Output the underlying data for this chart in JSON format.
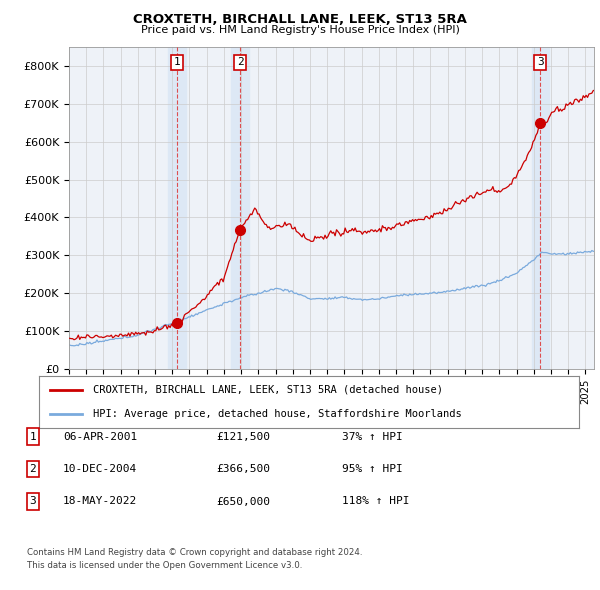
{
  "title1": "CROXTETH, BIRCHALL LANE, LEEK, ST13 5RA",
  "title2": "Price paid vs. HM Land Registry's House Price Index (HPI)",
  "ylim": [
    0,
    850000
  ],
  "yticks": [
    0,
    100000,
    200000,
    300000,
    400000,
    500000,
    600000,
    700000,
    800000
  ],
  "ytick_labels": [
    "£0",
    "£100K",
    "£200K",
    "£300K",
    "£400K",
    "£500K",
    "£600K",
    "£700K",
    "£800K"
  ],
  "sale_prices": [
    121500,
    366500,
    650000
  ],
  "sale_years": [
    2001.27,
    2004.94,
    2022.38
  ],
  "sale_labels": [
    "1",
    "2",
    "3"
  ],
  "red_line_color": "#cc0000",
  "blue_line_color": "#7aaadd",
  "legend_label_red": "CROXTETH, BIRCHALL LANE, LEEK, ST13 5RA (detached house)",
  "legend_label_blue": "HPI: Average price, detached house, Staffordshire Moorlands",
  "table_rows": [
    [
      "1",
      "06-APR-2001",
      "£121,500",
      "37% ↑ HPI"
    ],
    [
      "2",
      "10-DEC-2004",
      "£366,500",
      "95% ↑ HPI"
    ],
    [
      "3",
      "18-MAY-2022",
      "£650,000",
      "118% ↑ HPI"
    ]
  ],
  "footer1": "Contains HM Land Registry data © Crown copyright and database right 2024.",
  "footer2": "This data is licensed under the Open Government Licence v3.0.",
  "background_color": "#ffffff",
  "plot_bg_color": "#eef2f8",
  "highlight_color": "#dde8f5"
}
